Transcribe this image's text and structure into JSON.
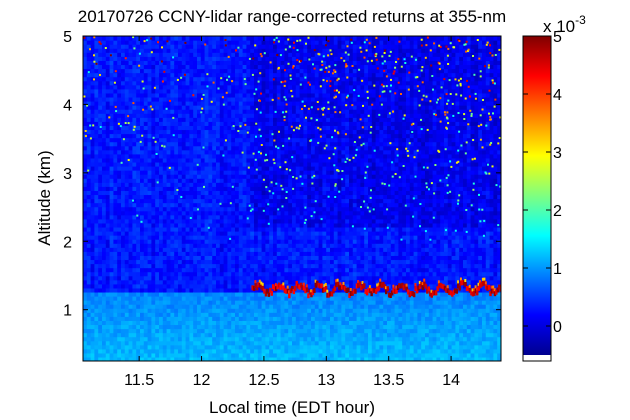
{
  "chart_data": {
    "type": "heatmap",
    "title": "20170726 CCNY-lidar range-corrected returns at 355-nm",
    "xlabel": "Local time (EDT hour)",
    "ylabel": "Altitude (km)",
    "xlim": [
      11.05,
      14.4
    ],
    "ylim": [
      0.25,
      5.0
    ],
    "x_ticks": [
      11.5,
      12,
      12.5,
      13,
      13.5,
      14
    ],
    "x_tick_labels": [
      "11.5",
      "12",
      "12.5",
      "13",
      "13.5",
      "14"
    ],
    "y_ticks": [
      1,
      2,
      3,
      4,
      5
    ],
    "y_tick_labels": [
      "1",
      "2",
      "3",
      "4",
      "5"
    ],
    "colorbar": {
      "range": [
        -0.0005,
        0.005
      ],
      "ticks": [
        0,
        1,
        2,
        3,
        4,
        5
      ],
      "tick_labels": [
        "0",
        "1",
        "2",
        "3",
        "4",
        "5"
      ],
      "exponent_base": "x 10",
      "exponent_power": "-3",
      "colormap": "jet"
    },
    "features": {
      "boundary_layer_top_km": 1.3,
      "boundary_layer_detected_from_hour": 12.4,
      "boundary_layer_signal": 0.005,
      "near_surface_signal": 0.0012,
      "background_signal": 0.0003,
      "noise_increase_after_hour": 12.4
    }
  }
}
